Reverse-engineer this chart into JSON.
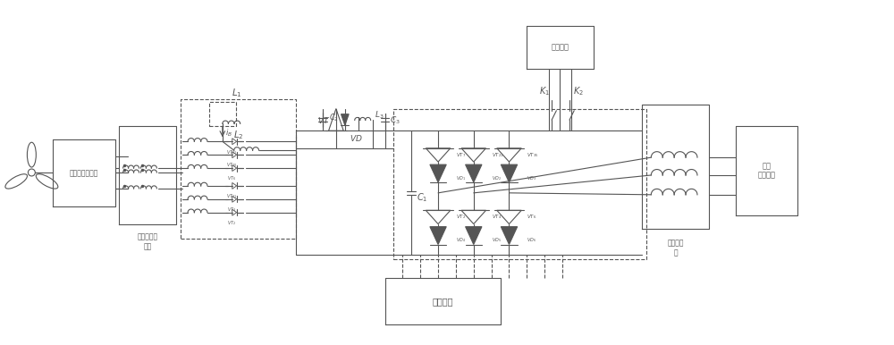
{
  "bg_color": "#ffffff",
  "line_color": "#555555",
  "labels": {
    "generator": "永磁同步发电机",
    "filter": "有源电力滤\n波器",
    "battery": "蓄电池组",
    "trigger": "触发电路",
    "local_load": "本地\n交流负载",
    "three_phase": "三相滤波\n器",
    "L1": "$L_1$",
    "L2": "$L_2$",
    "L3": "$L_3$",
    "C2": "$C_2$",
    "C3": "$C_3$",
    "C1": "$C_1$",
    "VD": "$VD$",
    "VT": "$VT$",
    "K1": "$K_{1}$",
    "K2": "$K_2$",
    "iB": "$i_B$"
  }
}
